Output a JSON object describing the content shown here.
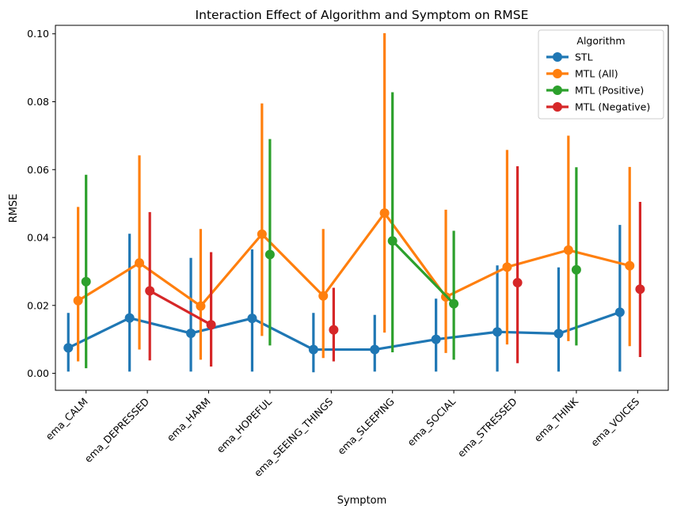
{
  "chart_data": {
    "type": "line",
    "title": "Interaction Effect of Algorithm and Symptom on RMSE",
    "xlabel": "Symptom",
    "ylabel": "RMSE",
    "ylim": [
      -0.005,
      0.1025
    ],
    "yticks": [
      0.0,
      0.02,
      0.04,
      0.06,
      0.08,
      0.1
    ],
    "ytick_labels": [
      "0.00",
      "0.02",
      "0.04",
      "0.06",
      "0.08",
      "0.10"
    ],
    "grid": false,
    "categories": [
      "ema_CALM",
      "ema_DEPRESSED",
      "ema_HARM",
      "ema_HOPEFUL",
      "ema_SEEING_THINGS",
      "ema_SLEEPING",
      "ema_SOCIAL",
      "ema_STRESSED",
      "ema_THINK",
      "ema_VOICES"
    ],
    "legend": {
      "title": "Algorithm",
      "placement": "top-right"
    },
    "series": [
      {
        "name": "STL",
        "color": "#1f77b4",
        "values": [
          0.0075,
          0.0163,
          0.0118,
          0.0162,
          0.007,
          0.007,
          0.01,
          0.0122,
          0.0117,
          0.018
        ],
        "err_low": [
          0.0005,
          0.0005,
          0.0005,
          0.0005,
          0.0003,
          0.0005,
          0.0005,
          0.0005,
          0.0005,
          0.0005
        ],
        "err_high": [
          0.0178,
          0.0411,
          0.034,
          0.0365,
          0.0178,
          0.0172,
          0.022,
          0.0318,
          0.0312,
          0.0437
        ]
      },
      {
        "name": "MTL (All)",
        "color": "#ff7f0e",
        "values": [
          0.0214,
          0.0325,
          0.0198,
          0.041,
          0.0228,
          0.0472,
          0.0225,
          0.0313,
          0.0363,
          0.0317
        ],
        "err_low": [
          0.0035,
          0.007,
          0.004,
          0.011,
          0.0045,
          0.012,
          0.006,
          0.0085,
          0.0095,
          0.008
        ],
        "err_high": [
          0.049,
          0.0642,
          0.0425,
          0.0795,
          0.0425,
          0.1002,
          0.0482,
          0.0658,
          0.07,
          0.0608
        ]
      },
      {
        "name": "MTL (Positive)",
        "color": "#2ca02c",
        "values": [
          0.027,
          null,
          null,
          0.035,
          null,
          0.039,
          0.0205,
          null,
          0.0305,
          null
        ],
        "err_low": [
          0.0015,
          null,
          null,
          0.0082,
          null,
          0.0062,
          0.004,
          null,
          0.0082,
          null
        ],
        "err_high": [
          0.0585,
          null,
          null,
          0.069,
          null,
          0.0828,
          0.042,
          null,
          0.0607,
          null
        ]
      },
      {
        "name": "MTL (Negative)",
        "color": "#d62728",
        "values": [
          null,
          0.0243,
          0.0143,
          null,
          0.0128,
          null,
          null,
          0.0267,
          null,
          0.0248
        ],
        "err_low": [
          null,
          0.0038,
          0.002,
          null,
          0.0035,
          null,
          null,
          0.003,
          null,
          0.0048
        ],
        "err_high": [
          null,
          0.0475,
          0.0357,
          null,
          0.0252,
          null,
          null,
          0.061,
          null,
          0.0505
        ]
      }
    ]
  }
}
